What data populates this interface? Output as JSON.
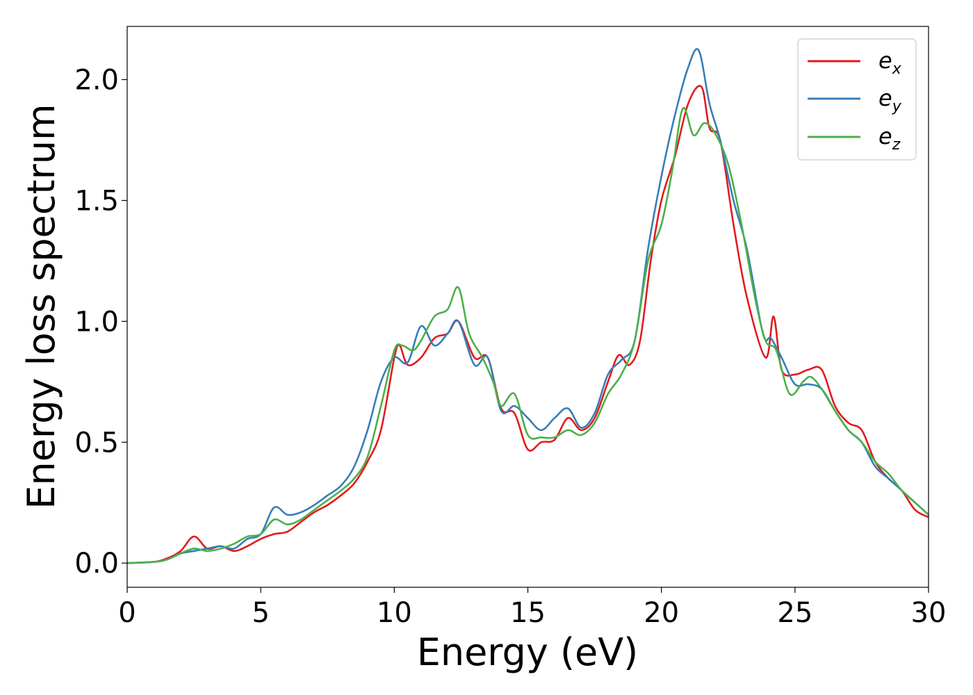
{
  "chart_data": {
    "type": "line",
    "xlabel": "Energy (eV)",
    "ylabel": "Energy loss spectrum",
    "xlim": [
      0,
      30
    ],
    "ylim": [
      -0.1,
      2.22
    ],
    "xticks": [
      "0",
      "5",
      "10",
      "15",
      "20",
      "25",
      "30"
    ],
    "yticks": [
      "0.0",
      "0.5",
      "1.0",
      "1.5",
      "2.0"
    ],
    "grid": false,
    "legend_placement": "top-right",
    "series": [
      {
        "name": "e_x",
        "legend_base": "e",
        "legend_sub": "x",
        "color": "#e41a1c",
        "x": [
          0,
          1,
          1.5,
          2,
          2.5,
          3,
          3.5,
          4,
          4.5,
          5,
          5.5,
          6,
          6.5,
          7,
          7.5,
          8,
          8.5,
          9,
          9.5,
          10,
          10.2,
          10.5,
          11,
          11.5,
          12,
          12.4,
          13,
          13.5,
          14,
          14.5,
          15,
          15.5,
          16,
          16.5,
          17,
          17.5,
          18,
          18.4,
          18.8,
          19.2,
          19.6,
          20,
          20.5,
          21,
          21.5,
          21.8,
          22.2,
          22.7,
          23.2,
          23.9,
          24.2,
          24.5,
          25,
          25.5,
          26,
          26.5,
          27,
          27.5,
          28,
          28.5,
          29,
          29.5,
          30
        ],
        "y": [
          0,
          0.005,
          0.02,
          0.05,
          0.11,
          0.06,
          0.07,
          0.05,
          0.07,
          0.1,
          0.12,
          0.13,
          0.17,
          0.21,
          0.24,
          0.28,
          0.33,
          0.42,
          0.55,
          0.85,
          0.9,
          0.82,
          0.85,
          0.93,
          0.95,
          1.0,
          0.85,
          0.85,
          0.64,
          0.62,
          0.47,
          0.5,
          0.51,
          0.6,
          0.55,
          0.6,
          0.75,
          0.86,
          0.82,
          0.92,
          1.25,
          1.5,
          1.68,
          1.9,
          1.97,
          1.8,
          1.75,
          1.4,
          1.1,
          0.85,
          1.02,
          0.8,
          0.78,
          0.8,
          0.8,
          0.65,
          0.58,
          0.55,
          0.42,
          0.35,
          0.3,
          0.22,
          0.19
        ]
      },
      {
        "name": "e_y",
        "legend_base": "e",
        "legend_sub": "y",
        "color": "#377eb8",
        "x": [
          0,
          1,
          1.5,
          2,
          2.5,
          3,
          3.5,
          4,
          4.5,
          5,
          5.5,
          6,
          6.5,
          7,
          7.5,
          8,
          8.5,
          9,
          9.5,
          10,
          10.5,
          11,
          11.5,
          12,
          12.4,
          13,
          13.5,
          14,
          14.5,
          15,
          15.5,
          16,
          16.5,
          17,
          17.5,
          18,
          18.5,
          19,
          19.5,
          20,
          20.5,
          21,
          21.4,
          21.8,
          22.2,
          22.7,
          23.2,
          23.8,
          24.1,
          24.5,
          25,
          25.5,
          26,
          26.5,
          27,
          27.5,
          28,
          28.5,
          29,
          29.5,
          30
        ],
        "y": [
          0,
          0.005,
          0.015,
          0.04,
          0.05,
          0.06,
          0.07,
          0.06,
          0.1,
          0.12,
          0.23,
          0.2,
          0.21,
          0.24,
          0.28,
          0.32,
          0.4,
          0.55,
          0.75,
          0.85,
          0.83,
          0.98,
          0.9,
          0.95,
          1.0,
          0.82,
          0.85,
          0.63,
          0.65,
          0.6,
          0.55,
          0.6,
          0.64,
          0.56,
          0.62,
          0.78,
          0.84,
          0.92,
          1.3,
          1.6,
          1.85,
          2.05,
          2.12,
          1.9,
          1.75,
          1.5,
          1.3,
          0.95,
          0.93,
          0.85,
          0.74,
          0.74,
          0.72,
          0.63,
          0.55,
          0.5,
          0.4,
          0.35,
          0.3,
          0.25,
          0.2
        ]
      },
      {
        "name": "e_z",
        "legend_base": "e",
        "legend_sub": "z",
        "color": "#4daf4a",
        "x": [
          0,
          1,
          1.5,
          2,
          2.5,
          3,
          3.5,
          4,
          4.5,
          5,
          5.5,
          6,
          6.5,
          7,
          7.5,
          8,
          8.5,
          9,
          9.5,
          10,
          10.3,
          10.7,
          11,
          11.5,
          12,
          12.4,
          12.8,
          13.3,
          13.7,
          14,
          14.5,
          15,
          15.5,
          16,
          16.5,
          17,
          17.5,
          18,
          18.5,
          19,
          19.5,
          20,
          20.4,
          20.8,
          21.2,
          21.6,
          22,
          22.5,
          23,
          23.5,
          23.9,
          24.3,
          24.8,
          25.3,
          25.6,
          26,
          26.5,
          27,
          27.5,
          28,
          28.5,
          29,
          29.5,
          30
        ],
        "y": [
          0,
          0.005,
          0.015,
          0.04,
          0.06,
          0.05,
          0.06,
          0.08,
          0.11,
          0.12,
          0.18,
          0.16,
          0.18,
          0.22,
          0.26,
          0.3,
          0.35,
          0.44,
          0.65,
          0.88,
          0.9,
          0.88,
          0.92,
          1.02,
          1.05,
          1.14,
          0.95,
          0.85,
          0.75,
          0.65,
          0.7,
          0.53,
          0.52,
          0.52,
          0.55,
          0.53,
          0.58,
          0.7,
          0.78,
          0.92,
          1.25,
          1.4,
          1.62,
          1.88,
          1.77,
          1.82,
          1.78,
          1.65,
          1.4,
          1.1,
          0.92,
          0.88,
          0.7,
          0.75,
          0.77,
          0.72,
          0.63,
          0.55,
          0.5,
          0.42,
          0.37,
          0.3,
          0.25,
          0.2
        ]
      }
    ]
  }
}
